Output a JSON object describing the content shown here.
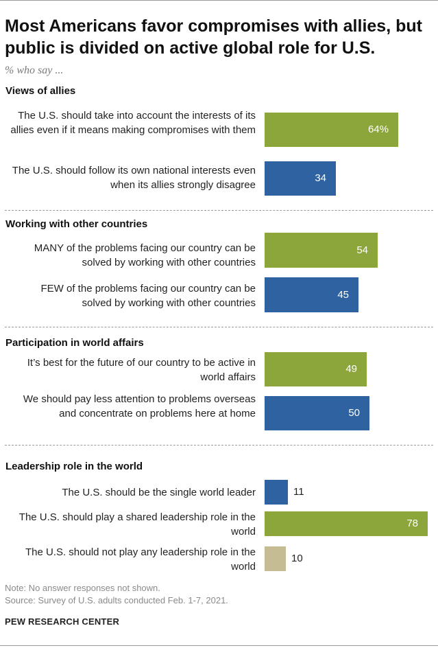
{
  "title": "Most Americans favor compromises with allies, but public is divided on active global role for U.S.",
  "subtitle": "% who say ...",
  "colors": {
    "green": "#8CA63B",
    "blue": "#2E62A1",
    "tan": "#C6BC94"
  },
  "chart_data": {
    "type": "bar",
    "orientation": "horizontal",
    "xlim": [
      0,
      78
    ],
    "groups": [
      {
        "name": "Views of allies",
        "items": [
          {
            "label": "The U.S. should take into account the interests of its allies even if it means making compromises with them",
            "value": 64,
            "display": "64%",
            "color": "green"
          },
          {
            "label": "The U.S. should follow its own national interests even when its allies strongly disagree",
            "value": 34,
            "display": "34",
            "color": "blue"
          }
        ]
      },
      {
        "name": "Working with other countries",
        "items": [
          {
            "label": "MANY of the problems facing our country can be solved by working with other countries",
            "value": 54,
            "display": "54",
            "color": "green"
          },
          {
            "label": "FEW of the problems facing our country can be solved by working with other countries",
            "value": 45,
            "display": "45",
            "color": "blue"
          }
        ]
      },
      {
        "name": "Participation in world affairs",
        "items": [
          {
            "label": "It’s best for the future of our country to be active in world affairs",
            "value": 49,
            "display": "49",
            "color": "green"
          },
          {
            "label": "We should pay less attention to problems overseas and concentrate on problems here at home",
            "value": 50,
            "display": "50",
            "color": "blue"
          }
        ]
      },
      {
        "name": "Leadership role in the world",
        "items": [
          {
            "label": "The U.S. should be the single world leader",
            "value": 11,
            "display": "11",
            "color": "blue"
          },
          {
            "label": "The U.S. should play a shared leadership role in the world",
            "value": 78,
            "display": "78",
            "color": "green"
          },
          {
            "label": "The U.S. should not play any leadership role in the world",
            "value": 10,
            "display": "10",
            "color": "tan"
          }
        ]
      }
    ]
  },
  "notes": {
    "note": "Note: No answer responses not shown.",
    "source": "Source: Survey of U.S. adults conducted Feb. 1-7, 2021."
  },
  "brand": "PEW RESEARCH CENTER"
}
